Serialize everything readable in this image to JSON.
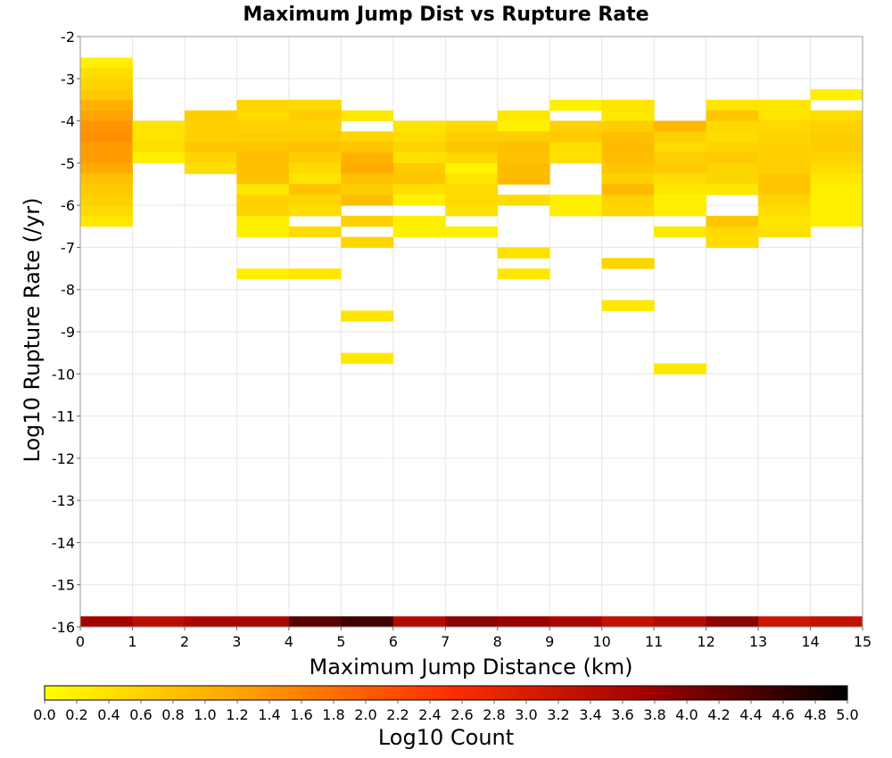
{
  "chart_data": {
    "type": "heatmap",
    "title": "Maximum Jump Dist vs Rupture Rate",
    "xlabel": "Maximum Jump Distance (km)",
    "ylabel": "Log10 Rupture Rate (/yr)",
    "xlim": [
      0,
      15
    ],
    "ylim": [
      -16,
      -2
    ],
    "x_ticks": [
      "0",
      "1",
      "2",
      "3",
      "4",
      "5",
      "6",
      "7",
      "8",
      "9",
      "10",
      "11",
      "12",
      "13",
      "14",
      "15"
    ],
    "y_ticks": [
      "-2",
      "-3",
      "-4",
      "-5",
      "-6",
      "-7",
      "-8",
      "-9",
      "-10",
      "-11",
      "-12",
      "-13",
      "-14",
      "-15",
      "-16"
    ],
    "grid": true,
    "bin_width_x": 1,
    "bin_height_y": 0.25,
    "colorbar": {
      "label": "Log10 Count",
      "range": [
        0,
        5
      ],
      "ticks": [
        "0.0",
        "0.2",
        "0.4",
        "0.6",
        "0.8",
        "1.0",
        "1.2",
        "1.4",
        "1.6",
        "1.8",
        "2.0",
        "2.2",
        "2.4",
        "2.6",
        "2.8",
        "3.0",
        "3.2",
        "3.4",
        "3.6",
        "3.8",
        "4.0",
        "4.2",
        "4.4",
        "4.6",
        "4.8",
        "5.0"
      ],
      "colors": [
        "#ffff00",
        "#ffa000",
        "#ff3000",
        "#a00000",
        "#000000"
      ]
    },
    "bins": [
      [
        0,
        -2.75,
        0.2
      ],
      [
        0,
        -3.0,
        0.45
      ],
      [
        0,
        -3.25,
        0.55
      ],
      [
        0,
        -3.5,
        0.7
      ],
      [
        0,
        -3.75,
        1.0
      ],
      [
        0,
        -4.0,
        1.2
      ],
      [
        0,
        -4.25,
        1.4
      ],
      [
        0,
        -4.5,
        1.45
      ],
      [
        0,
        -4.75,
        1.3
      ],
      [
        0,
        -5.0,
        1.3
      ],
      [
        0,
        -5.25,
        1.1
      ],
      [
        0,
        -5.5,
        0.8
      ],
      [
        0,
        -5.75,
        0.7
      ],
      [
        0,
        -6.0,
        0.6
      ],
      [
        0,
        -6.25,
        0.5
      ],
      [
        0,
        -6.5,
        0.3
      ],
      [
        1,
        -4.25,
        0.35
      ],
      [
        1,
        -4.5,
        0.35
      ],
      [
        1,
        -4.75,
        0.45
      ],
      [
        1,
        -5.0,
        0.2
      ],
      [
        2,
        -4.0,
        0.65
      ],
      [
        2,
        -4.25,
        0.6
      ],
      [
        2,
        -4.5,
        0.6
      ],
      [
        2,
        -4.75,
        0.75
      ],
      [
        2,
        -5.0,
        0.55
      ],
      [
        2,
        -5.25,
        0.45
      ],
      [
        3,
        -3.75,
        0.55
      ],
      [
        3,
        -4.0,
        0.5
      ],
      [
        3,
        -4.25,
        0.6
      ],
      [
        3,
        -4.5,
        0.65
      ],
      [
        3,
        -4.75,
        0.75
      ],
      [
        3,
        -5.0,
        0.85
      ],
      [
        3,
        -5.25,
        0.85
      ],
      [
        3,
        -5.5,
        0.8
      ],
      [
        3,
        -5.75,
        0.3
      ],
      [
        3,
        -6.0,
        0.6
      ],
      [
        3,
        -6.25,
        0.6
      ],
      [
        3,
        -6.5,
        0.2
      ],
      [
        3,
        -6.75,
        0.2
      ],
      [
        3,
        -7.75,
        0.2
      ],
      [
        4,
        -3.75,
        0.5
      ],
      [
        4,
        -4.0,
        0.65
      ],
      [
        4,
        -4.25,
        0.55
      ],
      [
        4,
        -4.5,
        0.65
      ],
      [
        4,
        -4.75,
        0.8
      ],
      [
        4,
        -5.0,
        0.65
      ],
      [
        4,
        -5.25,
        0.5
      ],
      [
        4,
        -5.5,
        0.35
      ],
      [
        4,
        -5.75,
        0.8
      ],
      [
        4,
        -6.0,
        0.55
      ],
      [
        4,
        -6.25,
        0.45
      ],
      [
        4,
        -6.75,
        0.45
      ],
      [
        4,
        -7.75,
        0.3
      ],
      [
        5,
        -4.0,
        0.3
      ],
      [
        5,
        -4.5,
        0.55
      ],
      [
        5,
        -4.75,
        0.75
      ],
      [
        5,
        -5.0,
        1.0
      ],
      [
        5,
        -5.25,
        1.1
      ],
      [
        5,
        -5.5,
        0.8
      ],
      [
        5,
        -5.75,
        0.65
      ],
      [
        5,
        -6.0,
        0.85
      ],
      [
        5,
        -6.5,
        0.6
      ],
      [
        5,
        -7.0,
        0.55
      ],
      [
        5,
        -8.75,
        0.35
      ],
      [
        5,
        -9.75,
        0.3
      ],
      [
        6,
        -4.25,
        0.35
      ],
      [
        6,
        -4.5,
        0.45
      ],
      [
        6,
        -4.75,
        0.55
      ],
      [
        6,
        -5.0,
        0.4
      ],
      [
        6,
        -5.25,
        0.7
      ],
      [
        6,
        -5.5,
        0.75
      ],
      [
        6,
        -5.75,
        0.4
      ],
      [
        6,
        -6.0,
        0.2
      ],
      [
        6,
        -6.5,
        0.2
      ],
      [
        6,
        -6.75,
        0.2
      ],
      [
        7,
        -4.25,
        0.5
      ],
      [
        7,
        -4.5,
        0.65
      ],
      [
        7,
        -4.75,
        0.75
      ],
      [
        7,
        -5.0,
        0.5
      ],
      [
        7,
        -5.25,
        0.15
      ],
      [
        7,
        -5.5,
        0.35
      ],
      [
        7,
        -5.75,
        0.5
      ],
      [
        7,
        -6.0,
        0.5
      ],
      [
        7,
        -6.25,
        0.4
      ],
      [
        7,
        -6.75,
        0.2
      ],
      [
        8,
        -4.0,
        0.3
      ],
      [
        8,
        -4.25,
        0.2
      ],
      [
        8,
        -4.5,
        0.65
      ],
      [
        8,
        -4.75,
        0.85
      ],
      [
        8,
        -5.0,
        0.8
      ],
      [
        8,
        -5.25,
        0.9
      ],
      [
        8,
        -5.5,
        0.9
      ],
      [
        8,
        -6.0,
        0.45
      ],
      [
        8,
        -7.25,
        0.4
      ],
      [
        8,
        -7.75,
        0.3
      ],
      [
        9,
        -3.75,
        0.2
      ],
      [
        9,
        -4.25,
        0.6
      ],
      [
        9,
        -4.5,
        0.7
      ],
      [
        9,
        -4.75,
        0.45
      ],
      [
        9,
        -5.0,
        0.4
      ],
      [
        9,
        -6.0,
        0.2
      ],
      [
        9,
        -6.25,
        0.2
      ],
      [
        10,
        -3.75,
        0.35
      ],
      [
        10,
        -4.0,
        0.3
      ],
      [
        10,
        -4.25,
        0.65
      ],
      [
        10,
        -4.5,
        0.85
      ],
      [
        10,
        -4.75,
        0.9
      ],
      [
        10,
        -5.0,
        0.85
      ],
      [
        10,
        -5.25,
        0.75
      ],
      [
        10,
        -5.5,
        0.6
      ],
      [
        10,
        -5.75,
        0.95
      ],
      [
        10,
        -6.0,
        0.6
      ],
      [
        10,
        -6.25,
        0.55
      ],
      [
        10,
        -7.5,
        0.55
      ],
      [
        10,
        -8.5,
        0.3
      ],
      [
        11,
        -4.25,
        0.95
      ],
      [
        11,
        -4.5,
        0.6
      ],
      [
        11,
        -4.75,
        0.5
      ],
      [
        11,
        -5.0,
        0.65
      ],
      [
        11,
        -5.25,
        0.7
      ],
      [
        11,
        -5.5,
        0.45
      ],
      [
        11,
        -5.75,
        0.3
      ],
      [
        11,
        -6.0,
        0.2
      ],
      [
        11,
        -6.25,
        0.2
      ],
      [
        11,
        -6.75,
        0.3
      ],
      [
        11,
        -10.0,
        0.3
      ],
      [
        12,
        -3.75,
        0.35
      ],
      [
        12,
        -4.0,
        0.75
      ],
      [
        12,
        -4.25,
        0.5
      ],
      [
        12,
        -4.5,
        0.45
      ],
      [
        12,
        -4.75,
        0.55
      ],
      [
        12,
        -5.0,
        0.7
      ],
      [
        12,
        -5.25,
        0.55
      ],
      [
        12,
        -5.5,
        0.55
      ],
      [
        12,
        -5.75,
        0.3
      ],
      [
        12,
        -6.5,
        0.75
      ],
      [
        12,
        -6.75,
        0.5
      ],
      [
        12,
        -7.0,
        0.45
      ],
      [
        13,
        -3.75,
        0.3
      ],
      [
        13,
        -4.0,
        0.35
      ],
      [
        13,
        -4.25,
        0.5
      ],
      [
        13,
        -4.5,
        0.55
      ],
      [
        13,
        -4.75,
        0.6
      ],
      [
        13,
        -5.0,
        0.6
      ],
      [
        13,
        -5.25,
        0.65
      ],
      [
        13,
        -5.5,
        0.75
      ],
      [
        13,
        -5.75,
        0.75
      ],
      [
        13,
        -6.0,
        0.55
      ],
      [
        13,
        -6.25,
        0.45
      ],
      [
        13,
        -6.5,
        0.35
      ],
      [
        13,
        -6.75,
        0.4
      ],
      [
        14,
        -3.5,
        0.2
      ],
      [
        14,
        -4.0,
        0.45
      ],
      [
        14,
        -4.25,
        0.6
      ],
      [
        14,
        -4.5,
        0.65
      ],
      [
        14,
        -4.75,
        0.65
      ],
      [
        14,
        -5.0,
        0.55
      ],
      [
        14,
        -5.25,
        0.45
      ],
      [
        14,
        -5.5,
        0.3
      ],
      [
        14,
        -5.75,
        0.2
      ],
      [
        14,
        -6.0,
        0.2
      ],
      [
        14,
        -6.25,
        0.2
      ],
      [
        14,
        -6.5,
        0.2
      ],
      [
        0,
        -16.0,
        3.7
      ],
      [
        1,
        -16.0,
        3.4
      ],
      [
        2,
        -16.0,
        3.6
      ],
      [
        3,
        -16.0,
        3.6
      ],
      [
        4,
        -16.0,
        4.3
      ],
      [
        5,
        -16.0,
        4.5
      ],
      [
        6,
        -16.0,
        3.5
      ],
      [
        7,
        -16.0,
        3.9
      ],
      [
        8,
        -16.0,
        3.8
      ],
      [
        9,
        -16.0,
        3.6
      ],
      [
        10,
        -16.0,
        3.3
      ],
      [
        11,
        -16.0,
        3.5
      ],
      [
        12,
        -16.0,
        3.9
      ],
      [
        13,
        -16.0,
        3.2
      ],
      [
        14,
        -16.0,
        3.3
      ]
    ]
  }
}
